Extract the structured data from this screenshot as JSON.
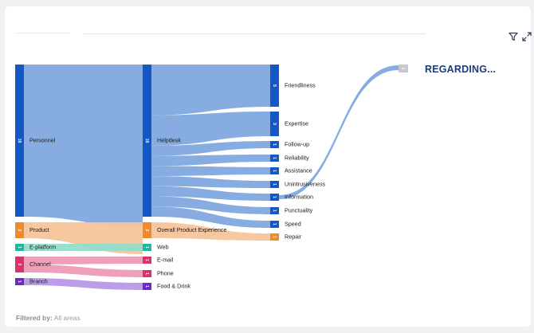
{
  "filter": {
    "label": "Filtered by:",
    "value": "All areas"
  },
  "panel": {
    "title": "REGARDING..."
  },
  "toolbar": {
    "filter_icon": "filter-icon",
    "expand_icon": "expand-icon"
  },
  "colors": {
    "blue_node": "#1458c5",
    "blue_link": "#7fa8e0",
    "orange_node": "#f08a2a",
    "orange_link": "#f7c59a",
    "teal_node": "#1fb89c",
    "teal_link": "#94dccb",
    "pink_node": "#d8346a",
    "pink_link": "#ee9ab4",
    "purple_node": "#6a2bc8",
    "purple_link": "#b898e8",
    "grey_node": "#c8c8cc"
  },
  "chart_data": {
    "type": "sankey",
    "nodes": [
      {
        "id": "personnel",
        "label": "Personnel",
        "count": "16",
        "color": "blue",
        "column": 0
      },
      {
        "id": "product",
        "label": "Product",
        "count": "2",
        "color": "orange",
        "column": 0
      },
      {
        "id": "eplatform",
        "label": "E-platform",
        "count": "1",
        "color": "teal",
        "column": 0
      },
      {
        "id": "channel",
        "label": "Channel",
        "count": "2",
        "color": "pink",
        "column": 0
      },
      {
        "id": "branch",
        "label": "Branch",
        "count": "1",
        "color": "purple",
        "column": 0
      },
      {
        "id": "helpdesk",
        "label": "Helpdesk",
        "count": "16",
        "color": "blue",
        "column": 1
      },
      {
        "id": "ope",
        "label": "Overall Product Experience",
        "count": "2",
        "color": "orange",
        "column": 1
      },
      {
        "id": "web",
        "label": "Web",
        "count": "1",
        "color": "teal",
        "column": 1
      },
      {
        "id": "email",
        "label": "E-mail",
        "count": "1",
        "color": "pink",
        "column": 1
      },
      {
        "id": "phone",
        "label": "Phone",
        "count": "1",
        "color": "pink",
        "column": 1
      },
      {
        "id": "fooddrink",
        "label": "Food & Drink",
        "count": "1",
        "color": "purple",
        "column": 1
      },
      {
        "id": "friendliness",
        "label": "Friendliness",
        "count": "5",
        "color": "blue",
        "column": 2
      },
      {
        "id": "expertise",
        "label": "Expertise",
        "count": "3",
        "color": "blue",
        "column": 2
      },
      {
        "id": "followup",
        "label": "Follow-up",
        "count": "1",
        "color": "blue",
        "column": 2
      },
      {
        "id": "reliability",
        "label": "Reliability",
        "count": "1",
        "color": "blue",
        "column": 2
      },
      {
        "id": "assistance",
        "label": "Assistance",
        "count": "1",
        "color": "blue",
        "column": 2
      },
      {
        "id": "unintrusiveness",
        "label": "Unintrusiveness",
        "count": "1",
        "color": "blue",
        "column": 2
      },
      {
        "id": "information",
        "label": "Information",
        "count": "1",
        "color": "blue",
        "column": 2
      },
      {
        "id": "punctuality",
        "label": "Punctuality",
        "count": "1",
        "color": "blue",
        "column": 2
      },
      {
        "id": "speed",
        "label": "Speed",
        "count": "1",
        "color": "blue",
        "column": 2
      },
      {
        "id": "repair",
        "label": "Repair",
        "count": "1",
        "color": "orange",
        "column": 2
      },
      {
        "id": "regarding",
        "label": "",
        "count": "1",
        "color": "grey",
        "column": 3
      }
    ],
    "links": [
      {
        "source": "personnel",
        "target": "helpdesk",
        "value": 16,
        "color": "blue"
      },
      {
        "source": "product",
        "target": "ope",
        "value": 2,
        "color": "orange"
      },
      {
        "source": "eplatform",
        "target": "web",
        "value": 1,
        "color": "teal"
      },
      {
        "source": "channel",
        "target": "email",
        "value": 1,
        "color": "pink"
      },
      {
        "source": "channel",
        "target": "phone",
        "value": 1,
        "color": "pink"
      },
      {
        "source": "branch",
        "target": "fooddrink",
        "value": 1,
        "color": "purple"
      },
      {
        "source": "helpdesk",
        "target": "friendliness",
        "value": 5,
        "color": "blue"
      },
      {
        "source": "helpdesk",
        "target": "expertise",
        "value": 3,
        "color": "blue"
      },
      {
        "source": "helpdesk",
        "target": "followup",
        "value": 1,
        "color": "blue"
      },
      {
        "source": "helpdesk",
        "target": "reliability",
        "value": 1,
        "color": "blue"
      },
      {
        "source": "helpdesk",
        "target": "assistance",
        "value": 1,
        "color": "blue"
      },
      {
        "source": "helpdesk",
        "target": "unintrusiveness",
        "value": 1,
        "color": "blue"
      },
      {
        "source": "helpdesk",
        "target": "information",
        "value": 1,
        "color": "blue"
      },
      {
        "source": "helpdesk",
        "target": "punctuality",
        "value": 1,
        "color": "blue"
      },
      {
        "source": "helpdesk",
        "target": "speed",
        "value": 1,
        "color": "blue"
      },
      {
        "source": "ope",
        "target": "repair",
        "value": 1,
        "color": "orange"
      },
      {
        "source": "information",
        "target": "regarding",
        "value": 1,
        "color": "blue"
      }
    ]
  }
}
